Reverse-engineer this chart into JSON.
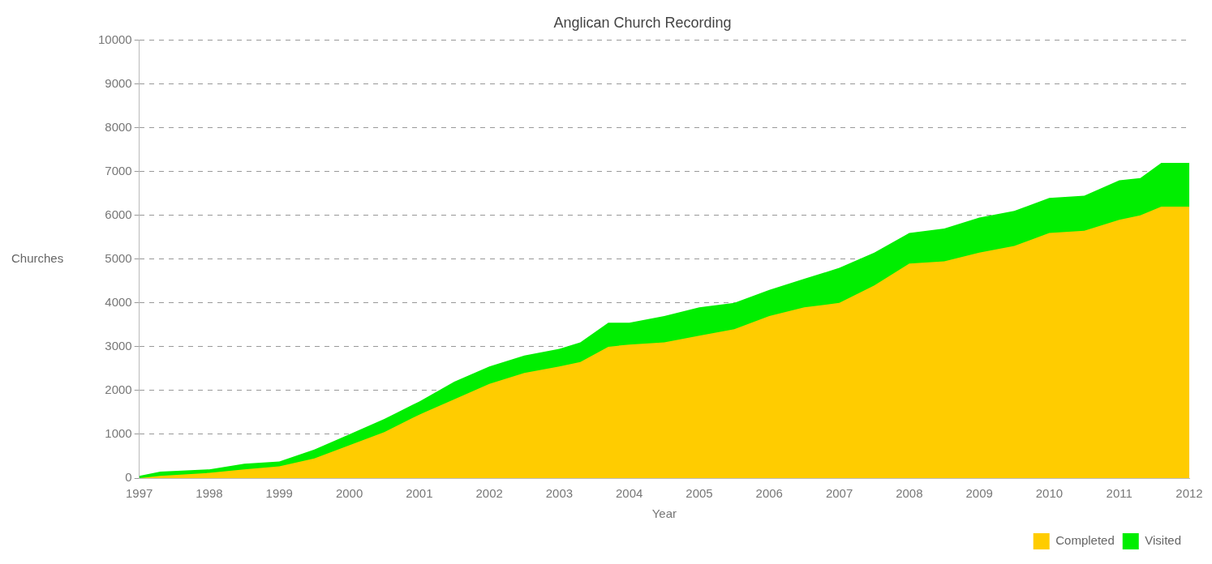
{
  "chart_data": {
    "type": "area",
    "title": "Anglican Church Recording",
    "xlabel": "Year",
    "ylabel": "Churches",
    "xlim": [
      1997,
      2012
    ],
    "xticks": [
      1997,
      1998,
      1999,
      2000,
      2001,
      2002,
      2003,
      2004,
      2005,
      2006,
      2007,
      2008,
      2009,
      2010,
      2011,
      2012
    ],
    "ylim": [
      0,
      10000
    ],
    "yticks": [
      0,
      1000,
      2000,
      3000,
      4000,
      5000,
      6000,
      7000,
      8000,
      9000,
      10000
    ],
    "x": [
      1997,
      1997.3,
      1998,
      1998.5,
      1999,
      1999.5,
      2000,
      2000.5,
      2001,
      2001.5,
      2002,
      2002.5,
      2003,
      2003.3,
      2003.7,
      2004,
      2004.5,
      2005,
      2005.5,
      2006,
      2006.5,
      2007,
      2007.5,
      2008,
      2008.5,
      2009,
      2009.5,
      2010,
      2010.5,
      2011,
      2011.3,
      2011.6,
      2012
    ],
    "series": [
      {
        "name": "Visited",
        "color": "#00ee00",
        "values": [
          50,
          150,
          200,
          330,
          380,
          650,
          1000,
          1350,
          1750,
          2200,
          2550,
          2800,
          2950,
          3100,
          3550,
          3550,
          3700,
          3900,
          4000,
          4300,
          4550,
          4800,
          5150,
          5600,
          5700,
          5950,
          6100,
          6400,
          6450,
          6800,
          6850,
          7200,
          7200
        ]
      },
      {
        "name": "Completed",
        "color": "#ffcc00",
        "values": [
          0,
          50,
          120,
          200,
          270,
          450,
          750,
          1050,
          1450,
          1800,
          2150,
          2400,
          2550,
          2650,
          3000,
          3050,
          3100,
          3250,
          3400,
          3700,
          3900,
          4000,
          4400,
          4900,
          4950,
          5150,
          5300,
          5600,
          5650,
          5900,
          6000,
          6200,
          6200
        ]
      }
    ],
    "grid": "y",
    "legend": "bottom right"
  }
}
